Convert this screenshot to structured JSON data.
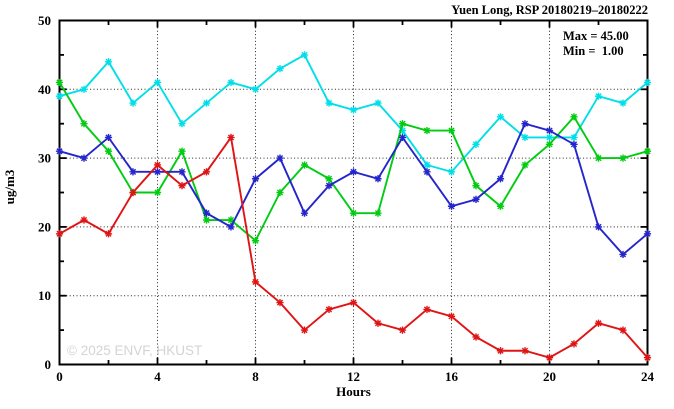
{
  "watermark": "© 2025 ENVF, HKUST",
  "chart_data": {
    "type": "line",
    "title": "Yuen Long, RSP 20180219–20180222",
    "xlabel": "Hours",
    "ylabel": "ug/m3",
    "xlim": [
      0,
      24
    ],
    "ylim": [
      0,
      50
    ],
    "xticks": [
      0,
      4,
      8,
      12,
      16,
      20,
      24
    ],
    "xticks_minor": [
      2,
      6,
      10,
      14,
      18,
      22
    ],
    "yticks": [
      0,
      10,
      20,
      30,
      40,
      50
    ],
    "yticks_minor": [
      5,
      15,
      25,
      35,
      45
    ],
    "grid": true,
    "legend": "none",
    "marker": "asterisk",
    "annotations": {
      "max_label": "Max = 45.00",
      "min_label": "Min =  1.00"
    },
    "x": [
      0,
      1,
      2,
      3,
      4,
      5,
      6,
      7,
      8,
      9,
      10,
      11,
      12,
      13,
      14,
      15,
      16,
      17,
      18,
      19,
      20,
      21,
      22,
      23,
      24
    ],
    "series": [
      {
        "name": "series-cyan",
        "color": "#00dfe8",
        "values": [
          39,
          40,
          44,
          38,
          41,
          35,
          38,
          41,
          40,
          43,
          45,
          38,
          37,
          38,
          34,
          29,
          28,
          32,
          36,
          33,
          33,
          33,
          39,
          38,
          41
        ]
      },
      {
        "name": "series-green",
        "color": "#00cc11",
        "values": [
          41,
          35,
          31,
          25,
          25,
          31,
          21,
          21,
          18,
          25,
          29,
          27,
          22,
          22,
          35,
          34,
          34,
          26,
          23,
          29,
          32,
          36,
          30,
          30,
          31
        ]
      },
      {
        "name": "series-blue",
        "color": "#2525cc",
        "values": [
          31,
          30,
          33,
          28,
          28,
          28,
          22,
          20,
          27,
          30,
          22,
          26,
          28,
          27,
          33,
          28,
          23,
          24,
          27,
          35,
          34,
          32,
          20,
          16,
          19
        ]
      },
      {
        "name": "series-red",
        "color": "#e01414",
        "values": [
          19,
          21,
          19,
          25,
          29,
          26,
          28,
          33,
          12,
          9,
          5,
          8,
          9,
          6,
          5,
          8,
          7,
          4,
          2,
          2,
          1,
          3,
          6,
          5,
          1
        ]
      }
    ]
  }
}
